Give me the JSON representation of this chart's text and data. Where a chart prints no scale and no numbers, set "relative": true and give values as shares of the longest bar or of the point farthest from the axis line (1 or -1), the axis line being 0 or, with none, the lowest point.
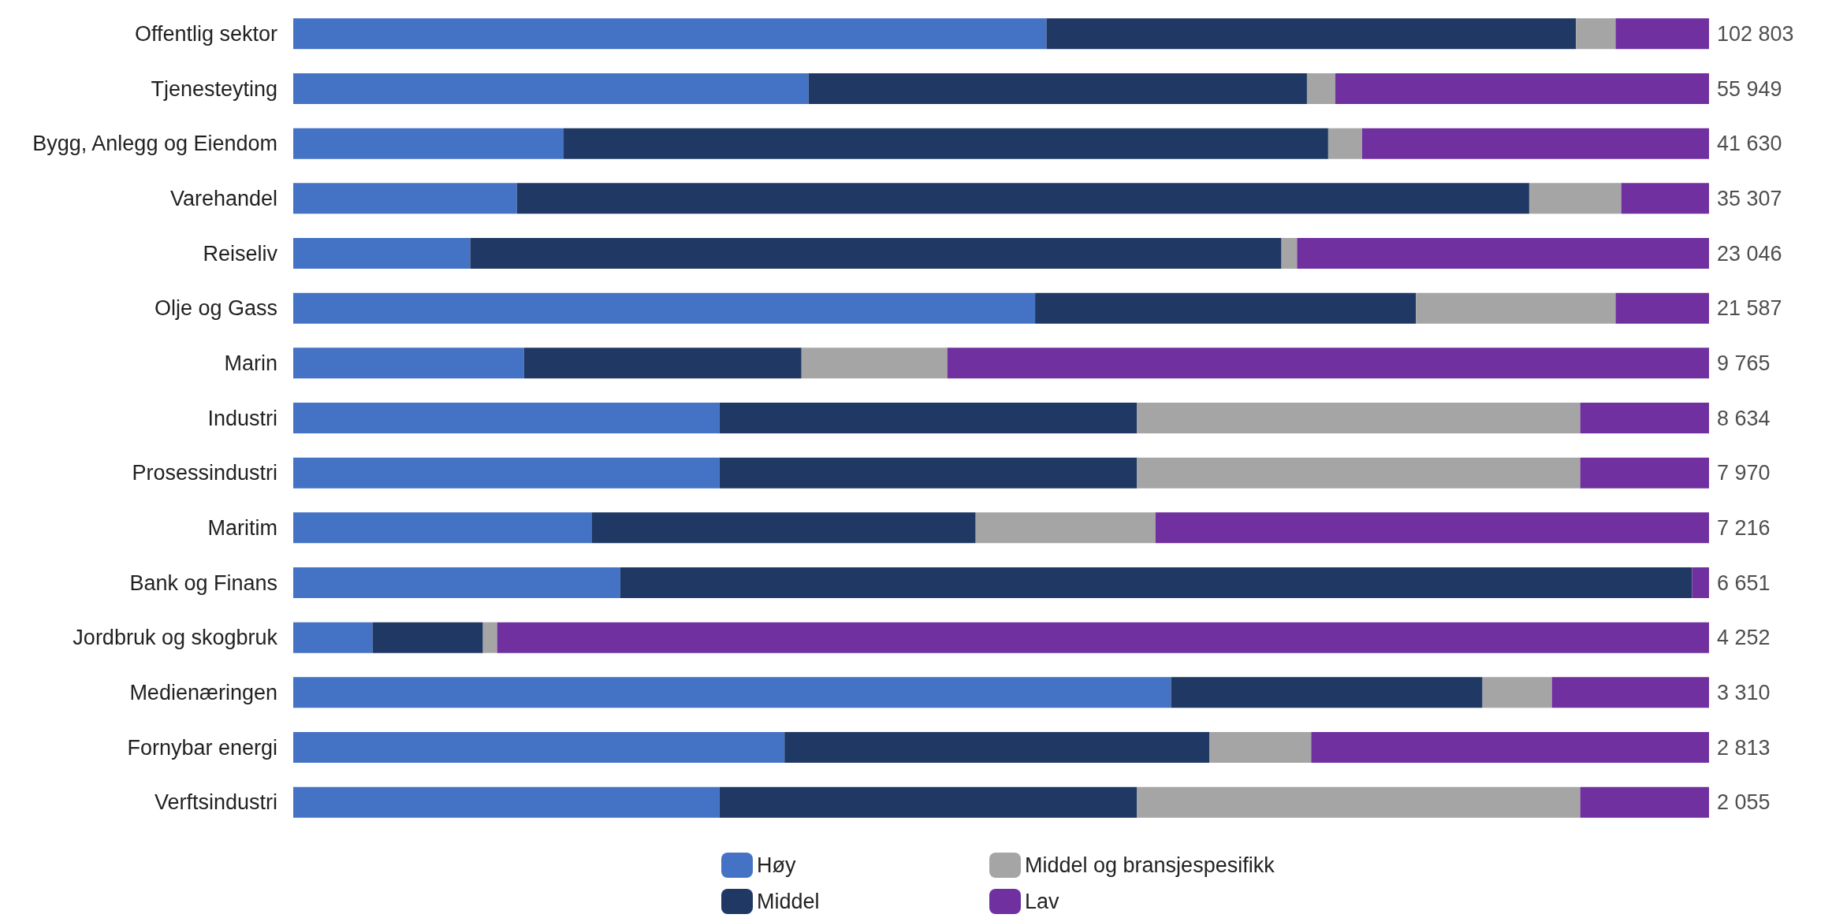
{
  "chart_data": {
    "type": "bar",
    "orientation": "horizontal",
    "stacked": true,
    "relative": true,
    "legend": "bottom",
    "categories": [
      "Offentlig sektor",
      "Tjenesteyting",
      "Bygg, Anlegg og Eiendom",
      "Varehandel",
      "Reiseliv",
      "Olje og Gass",
      "Marin",
      "Industri",
      "Prosessindustri",
      "Maritim",
      "Bank og Finans",
      "Jordbruk og skogbruk",
      "Medienæringen",
      "Fornybar energi",
      "Verftsindustri"
    ],
    "series": [
      {
        "name": "Høy",
        "color": "#4472c4",
        "values": [
          0.532,
          0.364,
          0.191,
          0.158,
          0.125,
          0.524,
          0.163,
          0.301,
          0.301,
          0.211,
          0.231,
          0.056,
          0.62,
          0.347,
          0.301
        ]
      },
      {
        "name": "Middel",
        "color": "#1f3864",
        "values": [
          0.374,
          0.352,
          0.54,
          0.715,
          0.573,
          0.269,
          0.196,
          0.295,
          0.295,
          0.271,
          0.757,
          0.078,
          0.22,
          0.3,
          0.295
        ]
      },
      {
        "name": "Middel og bransjespesifikk",
        "color": "#a5a5a5",
        "values": [
          0.028,
          0.02,
          0.024,
          0.065,
          0.011,
          0.141,
          0.103,
          0.313,
          0.313,
          0.127,
          0,
          0.01,
          0.049,
          0.072,
          0.313
        ]
      },
      {
        "name": "Lav",
        "color": "#7030a0",
        "values": [
          0.066,
          0.264,
          0.245,
          0.062,
          0.291,
          0.066,
          0.538,
          0.091,
          0.091,
          0.391,
          0.012,
          0.856,
          0.111,
          0.281,
          0.091
        ]
      }
    ],
    "annotations": [
      "102 803",
      "55 949",
      "41 630",
      "35 307",
      "23 046",
      "21 587",
      "9 765",
      "8 634",
      "7 970",
      "7 216",
      "6 651",
      "4 252",
      "3 310",
      "2 813",
      "2 055"
    ]
  }
}
